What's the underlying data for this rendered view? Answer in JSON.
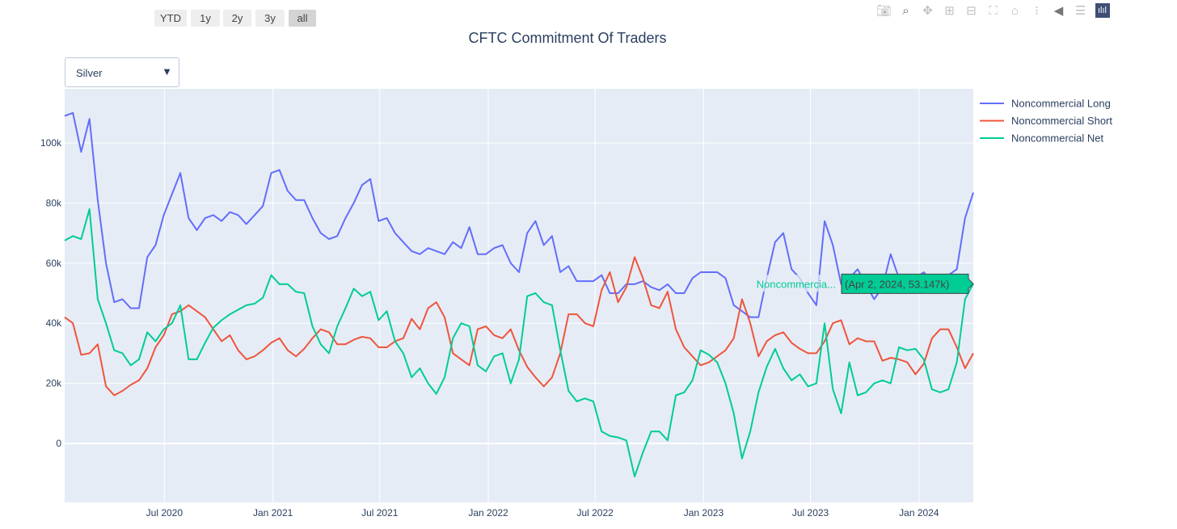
{
  "title": "CFTC Commitment Of Traders",
  "range_buttons": [
    {
      "label": "YTD",
      "active": false
    },
    {
      "label": "1y",
      "active": false
    },
    {
      "label": "2y",
      "active": false
    },
    {
      "label": "3y",
      "active": false
    },
    {
      "label": "all",
      "active": true
    }
  ],
  "dropdown": {
    "selected": "Silver",
    "arrow": "▼"
  },
  "modebar": [
    "camera-icon",
    "zoom-icon",
    "pan-icon",
    "zoom-in-icon",
    "zoom-out-icon",
    "autoscale-icon",
    "reset-axes-icon",
    "spike-lines-icon",
    "hover-closest-icon",
    "hover-compare-icon",
    "plotly-logo-icon"
  ],
  "hover": {
    "series_label": "Noncommercia...",
    "text": "(Apr 2, 2024, 53.147k)"
  },
  "chart_data": {
    "type": "line",
    "title": "CFTC Commitment Of Traders",
    "xlabel": "",
    "ylabel": "",
    "x_start": "2020-01-14",
    "x_step_days": 14,
    "x_range": [
      "2020-01-14",
      "2024-04-02"
    ],
    "ylim": [
      -19.6,
      118
    ],
    "y_unit": "k",
    "x_ticks": [
      {
        "date": "2020-07-01",
        "label": "Jul 2020"
      },
      {
        "date": "2021-01-01",
        "label": "Jan 2021"
      },
      {
        "date": "2021-07-01",
        "label": "Jul 2021"
      },
      {
        "date": "2022-01-01",
        "label": "Jan 2022"
      },
      {
        "date": "2022-07-01",
        "label": "Jul 2022"
      },
      {
        "date": "2023-01-01",
        "label": "Jan 2023"
      },
      {
        "date": "2023-07-01",
        "label": "Jul 2023"
      },
      {
        "date": "2024-01-01",
        "label": "Jan 2024"
      }
    ],
    "y_ticks": [
      {
        "value": 0,
        "label": "0"
      },
      {
        "value": 20,
        "label": "20k"
      },
      {
        "value": 40,
        "label": "40k"
      },
      {
        "value": 60,
        "label": "60k"
      },
      {
        "value": 80,
        "label": "80k"
      },
      {
        "value": 100,
        "label": "100k"
      }
    ],
    "grid": true,
    "legend_position": "right-top",
    "series": [
      {
        "name": "Noncommercial Long",
        "color": "#636efa",
        "values": [
          109,
          110,
          97,
          108,
          81,
          60,
          47,
          48,
          45,
          45,
          62,
          66,
          76,
          83,
          90,
          75,
          71,
          75,
          76,
          74,
          77,
          76,
          73,
          76,
          79,
          90,
          91,
          84,
          81,
          81,
          75,
          70,
          68,
          69,
          75,
          80,
          86,
          88,
          74,
          75,
          70,
          67,
          64,
          63,
          65,
          64,
          63,
          67,
          65,
          72,
          63,
          63,
          65,
          66,
          60,
          57,
          70,
          74,
          66,
          69,
          57,
          59,
          54,
          54,
          54,
          56,
          50,
          50,
          53,
          53,
          54,
          52,
          51,
          53,
          50,
          50,
          55,
          57,
          57,
          57,
          55,
          46,
          44,
          42,
          42,
          55,
          67,
          70,
          58,
          55,
          50,
          46,
          74,
          66,
          53,
          55,
          58,
          53,
          48,
          52,
          63,
          55,
          53,
          55,
          57,
          54,
          55,
          56,
          58,
          75,
          83.5
        ]
      },
      {
        "name": "Noncommercial Short",
        "color": "#EF553B",
        "values": [
          42,
          40,
          29.5,
          30,
          33,
          19,
          16,
          17.5,
          19.5,
          21,
          25,
          32,
          36,
          43,
          44,
          46,
          44,
          42,
          38,
          34,
          36,
          31,
          28,
          29,
          31,
          33.5,
          35,
          31,
          29,
          31.5,
          35,
          38,
          37,
          33,
          33,
          34.5,
          35.5,
          35,
          32,
          32,
          34,
          35,
          41.5,
          38,
          45,
          47,
          42,
          30,
          28,
          26,
          38,
          39,
          36,
          35,
          38,
          31,
          25.5,
          22,
          19,
          22,
          30,
          43,
          43,
          40,
          39,
          51,
          57,
          47,
          52,
          62,
          55,
          46,
          45,
          50.5,
          38,
          32,
          29,
          26,
          27,
          29,
          31,
          35,
          48,
          40,
          29,
          34,
          36,
          37,
          33.5,
          31.5,
          30,
          30,
          34,
          40,
          41,
          33,
          35,
          34,
          34,
          27.5,
          28.5,
          28,
          27,
          23,
          26.5,
          35,
          38,
          38,
          32,
          25,
          30
        ]
      },
      {
        "name": "Noncommercial Net",
        "color": "#00cc96",
        "values": [
          67.5,
          69,
          68,
          78,
          48,
          40,
          31,
          30,
          26,
          28,
          37,
          34,
          38,
          40,
          46,
          28,
          28,
          33.5,
          38.5,
          41,
          43,
          44.5,
          46,
          46.5,
          48.5,
          56,
          53,
          53,
          50.5,
          50,
          39,
          33,
          30,
          39,
          45,
          51.5,
          49,
          50.5,
          41,
          44,
          34,
          30,
          22,
          25,
          20,
          16.5,
          22,
          35,
          40,
          39,
          26,
          24,
          29,
          30,
          20,
          28,
          49,
          50,
          47,
          46,
          31,
          17.5,
          14,
          15,
          14,
          4,
          2.5,
          2,
          1,
          -11,
          -3,
          4,
          4,
          1,
          16,
          17,
          21,
          31,
          29.5,
          27,
          20,
          10,
          -5,
          4,
          17,
          25.5,
          31.5,
          25,
          21,
          23,
          19,
          20,
          40,
          18,
          10,
          27,
          16,
          17,
          20,
          21,
          20,
          32,
          31,
          31.5,
          28,
          18,
          17,
          18,
          27,
          48,
          53.147
        ]
      }
    ]
  }
}
